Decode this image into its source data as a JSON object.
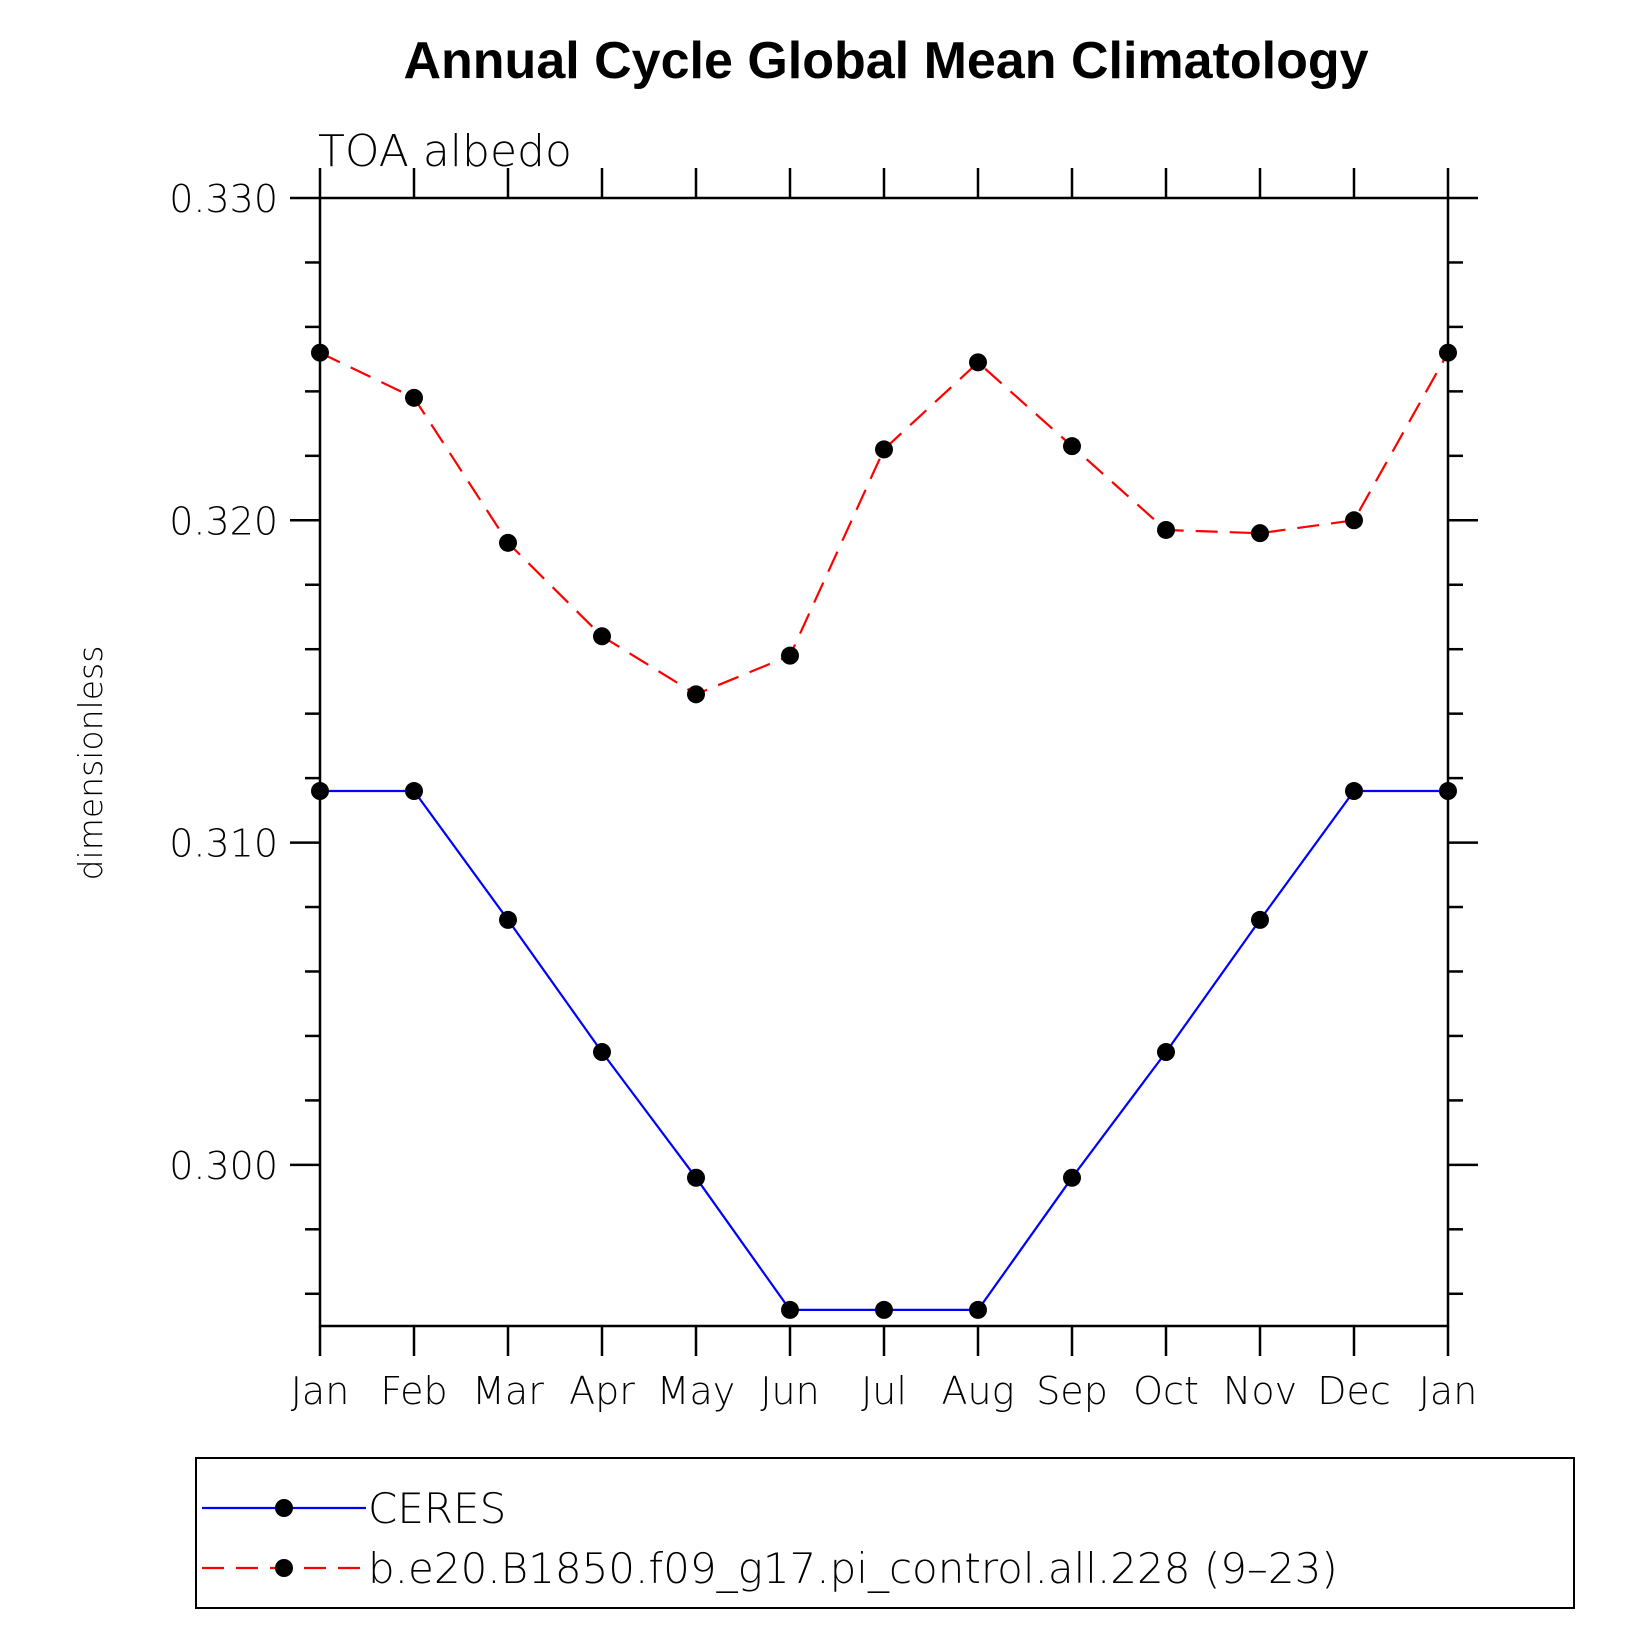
{
  "chart_data": {
    "type": "line",
    "title": "Annual Cycle Global Mean Climatology",
    "subtitle": "TOA albedo",
    "ylabel": "dimensionless",
    "xlabel": "",
    "categories": [
      "Jan",
      "Feb",
      "Mar",
      "Apr",
      "May",
      "Jun",
      "Jul",
      "Aug",
      "Sep",
      "Oct",
      "Nov",
      "Dec",
      "Jan"
    ],
    "ylim": [
      0.295,
      0.33
    ],
    "yticks": [
      "0.300",
      "0.310",
      "0.320",
      "0.330"
    ],
    "ytick_values": [
      0.3,
      0.31,
      0.32,
      0.33
    ],
    "y_minor_step": 0.002,
    "grid": false,
    "legend_position": "bottom",
    "series": [
      {
        "name": "CERES",
        "color": "#0000ff",
        "line_style": "solid",
        "marker": "filled-circle",
        "values": [
          0.3116,
          0.3116,
          0.3076,
          0.3035,
          0.2996,
          0.2955,
          0.2955,
          0.2955,
          0.2996,
          0.3035,
          0.3076,
          0.3116,
          0.3116
        ]
      },
      {
        "name": "b.e20.B1850.f09_g17.pi_control.all.228 (9–23)",
        "color": "#ff0000",
        "line_style": "dashed",
        "marker": "filled-circle",
        "values": [
          0.3252,
          0.3238,
          0.3193,
          0.3164,
          0.3146,
          0.3158,
          0.3222,
          0.3249,
          0.3223,
          0.3197,
          0.3196,
          0.32,
          0.3252
        ]
      }
    ]
  }
}
